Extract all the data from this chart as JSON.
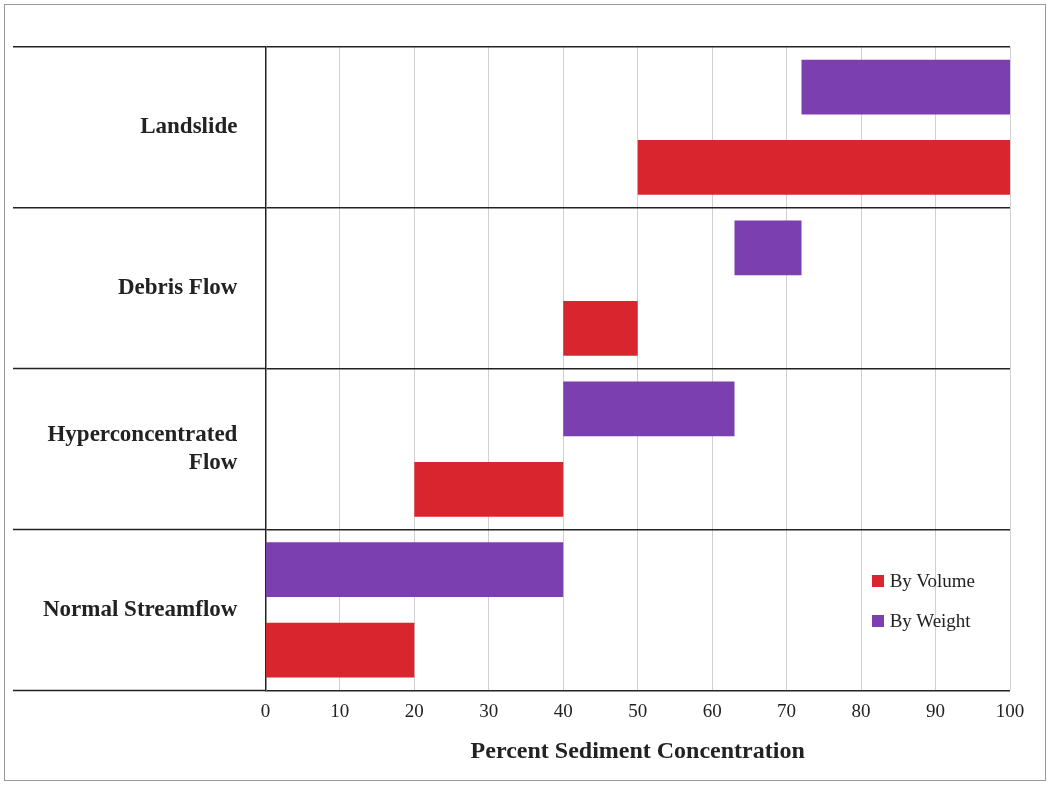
{
  "chart_data": {
    "type": "bar",
    "orientation": "horizontal",
    "xlabel": "Percent Sediment Concentration",
    "categories": [
      "Landslide",
      "Debris Flow",
      "Hyperconcentrated Flow",
      "Normal Streamflow"
    ],
    "series": [
      {
        "name": "By Volume",
        "color": "#d9262e",
        "values": [
          50,
          10,
          20,
          20
        ],
        "base": [
          50,
          40,
          20,
          0
        ]
      },
      {
        "name": "By Weight",
        "color": "#7b3fb0",
        "values": [
          28,
          9,
          23,
          40
        ],
        "base": [
          72,
          63,
          40,
          0
        ]
      }
    ],
    "xlim": [
      0,
      100
    ],
    "xticks": [
      0,
      10,
      20,
      30,
      40,
      50,
      60,
      70,
      80,
      90,
      100
    ],
    "grid": true,
    "legend": "bottom right"
  }
}
